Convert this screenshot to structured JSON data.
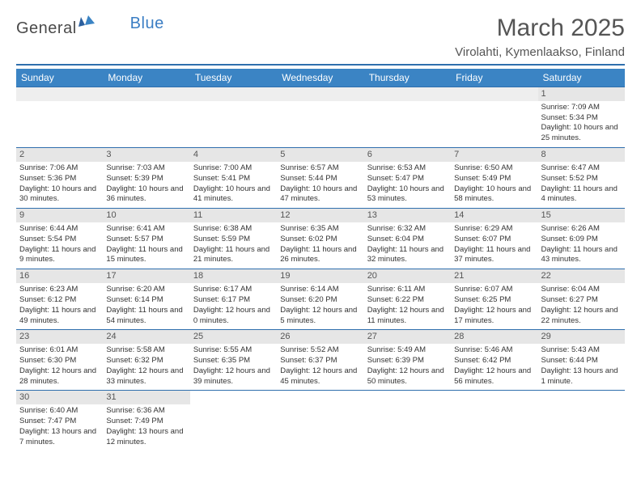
{
  "brand": {
    "part1": "General",
    "part2": "Blue"
  },
  "title": "March 2025",
  "location": "Virolahti, Kymenlaakso, Finland",
  "colors": {
    "header_bg": "#3b84c4",
    "header_text": "#ffffff",
    "rule": "#2f6fad",
    "daynum_bg": "#e6e6e6",
    "text": "#333333"
  },
  "weekdays": [
    "Sunday",
    "Monday",
    "Tuesday",
    "Wednesday",
    "Thursday",
    "Friday",
    "Saturday"
  ],
  "weeks": [
    [
      null,
      null,
      null,
      null,
      null,
      null,
      {
        "n": "1",
        "sunrise": "7:09 AM",
        "sunset": "5:34 PM",
        "daylight": "10 hours and 25 minutes."
      }
    ],
    [
      {
        "n": "2",
        "sunrise": "7:06 AM",
        "sunset": "5:36 PM",
        "daylight": "10 hours and 30 minutes."
      },
      {
        "n": "3",
        "sunrise": "7:03 AM",
        "sunset": "5:39 PM",
        "daylight": "10 hours and 36 minutes."
      },
      {
        "n": "4",
        "sunrise": "7:00 AM",
        "sunset": "5:41 PM",
        "daylight": "10 hours and 41 minutes."
      },
      {
        "n": "5",
        "sunrise": "6:57 AM",
        "sunset": "5:44 PM",
        "daylight": "10 hours and 47 minutes."
      },
      {
        "n": "6",
        "sunrise": "6:53 AM",
        "sunset": "5:47 PM",
        "daylight": "10 hours and 53 minutes."
      },
      {
        "n": "7",
        "sunrise": "6:50 AM",
        "sunset": "5:49 PM",
        "daylight": "10 hours and 58 minutes."
      },
      {
        "n": "8",
        "sunrise": "6:47 AM",
        "sunset": "5:52 PM",
        "daylight": "11 hours and 4 minutes."
      }
    ],
    [
      {
        "n": "9",
        "sunrise": "6:44 AM",
        "sunset": "5:54 PM",
        "daylight": "11 hours and 9 minutes."
      },
      {
        "n": "10",
        "sunrise": "6:41 AM",
        "sunset": "5:57 PM",
        "daylight": "11 hours and 15 minutes."
      },
      {
        "n": "11",
        "sunrise": "6:38 AM",
        "sunset": "5:59 PM",
        "daylight": "11 hours and 21 minutes."
      },
      {
        "n": "12",
        "sunrise": "6:35 AM",
        "sunset": "6:02 PM",
        "daylight": "11 hours and 26 minutes."
      },
      {
        "n": "13",
        "sunrise": "6:32 AM",
        "sunset": "6:04 PM",
        "daylight": "11 hours and 32 minutes."
      },
      {
        "n": "14",
        "sunrise": "6:29 AM",
        "sunset": "6:07 PM",
        "daylight": "11 hours and 37 minutes."
      },
      {
        "n": "15",
        "sunrise": "6:26 AM",
        "sunset": "6:09 PM",
        "daylight": "11 hours and 43 minutes."
      }
    ],
    [
      {
        "n": "16",
        "sunrise": "6:23 AM",
        "sunset": "6:12 PM",
        "daylight": "11 hours and 49 minutes."
      },
      {
        "n": "17",
        "sunrise": "6:20 AM",
        "sunset": "6:14 PM",
        "daylight": "11 hours and 54 minutes."
      },
      {
        "n": "18",
        "sunrise": "6:17 AM",
        "sunset": "6:17 PM",
        "daylight": "12 hours and 0 minutes."
      },
      {
        "n": "19",
        "sunrise": "6:14 AM",
        "sunset": "6:20 PM",
        "daylight": "12 hours and 5 minutes."
      },
      {
        "n": "20",
        "sunrise": "6:11 AM",
        "sunset": "6:22 PM",
        "daylight": "12 hours and 11 minutes."
      },
      {
        "n": "21",
        "sunrise": "6:07 AM",
        "sunset": "6:25 PM",
        "daylight": "12 hours and 17 minutes."
      },
      {
        "n": "22",
        "sunrise": "6:04 AM",
        "sunset": "6:27 PM",
        "daylight": "12 hours and 22 minutes."
      }
    ],
    [
      {
        "n": "23",
        "sunrise": "6:01 AM",
        "sunset": "6:30 PM",
        "daylight": "12 hours and 28 minutes."
      },
      {
        "n": "24",
        "sunrise": "5:58 AM",
        "sunset": "6:32 PM",
        "daylight": "12 hours and 33 minutes."
      },
      {
        "n": "25",
        "sunrise": "5:55 AM",
        "sunset": "6:35 PM",
        "daylight": "12 hours and 39 minutes."
      },
      {
        "n": "26",
        "sunrise": "5:52 AM",
        "sunset": "6:37 PM",
        "daylight": "12 hours and 45 minutes."
      },
      {
        "n": "27",
        "sunrise": "5:49 AM",
        "sunset": "6:39 PM",
        "daylight": "12 hours and 50 minutes."
      },
      {
        "n": "28",
        "sunrise": "5:46 AM",
        "sunset": "6:42 PM",
        "daylight": "12 hours and 56 minutes."
      },
      {
        "n": "29",
        "sunrise": "5:43 AM",
        "sunset": "6:44 PM",
        "daylight": "13 hours and 1 minute."
      }
    ],
    [
      {
        "n": "30",
        "sunrise": "6:40 AM",
        "sunset": "7:47 PM",
        "daylight": "13 hours and 7 minutes."
      },
      {
        "n": "31",
        "sunrise": "6:36 AM",
        "sunset": "7:49 PM",
        "daylight": "13 hours and 12 minutes."
      },
      null,
      null,
      null,
      null,
      null
    ]
  ],
  "labels": {
    "sunrise": "Sunrise:",
    "sunset": "Sunset:",
    "daylight": "Daylight:"
  }
}
